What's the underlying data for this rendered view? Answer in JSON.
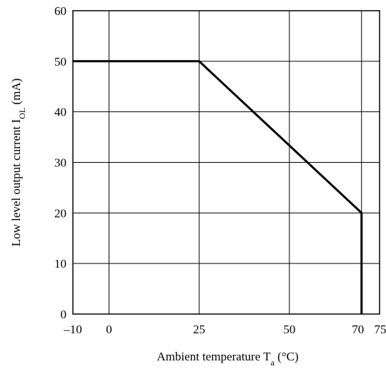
{
  "chart_data": {
    "type": "line",
    "xlabel_main": "Ambient temperature T",
    "xlabel_sub": "a",
    "xlabel_unit": " (°C)",
    "ylabel_main": "Low level output current I",
    "ylabel_sub": "OL",
    "ylabel_unit": " (mA)",
    "xlim": [
      -10,
      75
    ],
    "ylim": [
      0,
      60
    ],
    "x_ticks": [
      -10,
      0,
      25,
      50,
      70,
      75
    ],
    "x_tick_labels": [
      "–10",
      "0",
      "25",
      "50",
      "70",
      "75"
    ],
    "y_ticks": [
      0,
      10,
      20,
      30,
      40,
      50,
      60
    ],
    "y_tick_labels": [
      "0",
      "10",
      "20",
      "30",
      "40",
      "50",
      "60"
    ],
    "x_grid": [
      0,
      25,
      50,
      70
    ],
    "grid": true,
    "series": [
      {
        "x": [
          -10,
          25,
          70,
          70
        ],
        "y": [
          50,
          50,
          20,
          0
        ]
      }
    ]
  }
}
